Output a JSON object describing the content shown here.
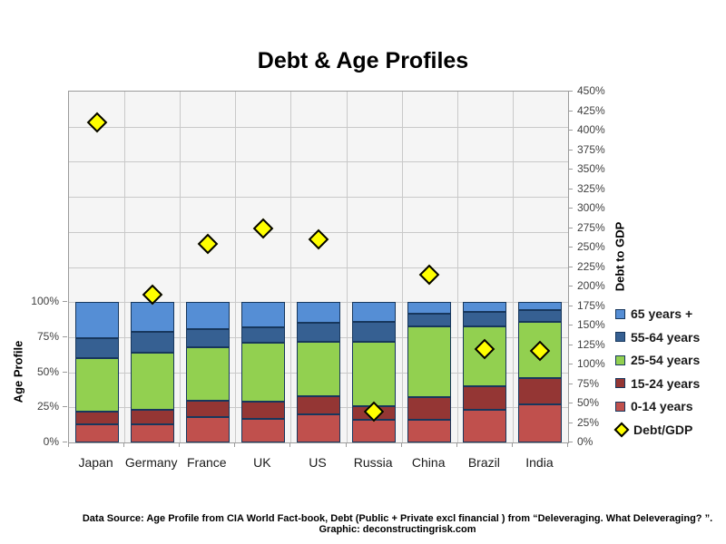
{
  "page": {
    "footer": "Data Source: Age Profile from CIA World Fact-book, Debt (Public + Private excl financial ) from “Deleveraging. What Deleveraging? ”. Graphic: deconstructingrisk.com"
  },
  "chart_data": {
    "type": "bar",
    "subtype": "100%-stacked-columns-with-diamond-scatter-overlay",
    "title": "Debt & Age Profiles",
    "categories": [
      "Japan",
      "Germany",
      "France",
      "UK",
      "US",
      "Russia",
      "China",
      "Brazil",
      "India"
    ],
    "series": [
      {
        "name": "0-14 years",
        "color": "#C0504D",
        "axis": "left",
        "values": [
          13,
          13,
          18,
          17,
          20,
          16,
          16,
          23,
          27
        ]
      },
      {
        "name": "15-24 years",
        "color": "#943634",
        "axis": "left",
        "values": [
          9,
          10,
          12,
          12,
          13,
          10,
          16,
          17,
          19
        ]
      },
      {
        "name": "25-54 years",
        "color": "#92D050",
        "axis": "left",
        "values": [
          38,
          41,
          38,
          42,
          39,
          46,
          51,
          43,
          40
        ]
      },
      {
        "name": "55-64 years",
        "color": "#366092",
        "axis": "left",
        "values": [
          14,
          15,
          13,
          11,
          13,
          14,
          9,
          10,
          8
        ]
      },
      {
        "name": "65 years +",
        "color": "#558ED5",
        "axis": "left",
        "values": [
          26,
          21,
          19,
          18,
          15,
          14,
          8,
          7,
          6
        ]
      }
    ],
    "scatter_series": {
      "name": "Debt/GDP",
      "marker": "diamond",
      "fill": "#FFFF00",
      "border": "#000000",
      "axis": "right",
      "values": [
        410,
        190,
        255,
        275,
        260,
        40,
        215,
        120,
        118
      ]
    },
    "left_axis": {
      "title": "Age Profile",
      "min": 0,
      "max": 100,
      "major": 25,
      "plot_scale_max": 250,
      "tick_suffix": "%"
    },
    "right_axis": {
      "title": "Debt to GDP",
      "min": 0,
      "max": 450,
      "major": 25,
      "tick_suffix": "%"
    },
    "legend_position": "right",
    "grid": true,
    "legend": [
      {
        "label": "65 years +",
        "color": "#558ED5",
        "marker": "square"
      },
      {
        "label": "55-64 years",
        "color": "#366092",
        "marker": "square"
      },
      {
        "label": "25-54 years",
        "color": "#92D050",
        "marker": "square"
      },
      {
        "label": "15-24 years",
        "color": "#943634",
        "marker": "square"
      },
      {
        "label": "0-14 years",
        "color": "#C0504D",
        "marker": "square"
      },
      {
        "label": "Debt/GDP",
        "color": "#FFFF00",
        "marker": "diamond"
      }
    ]
  }
}
